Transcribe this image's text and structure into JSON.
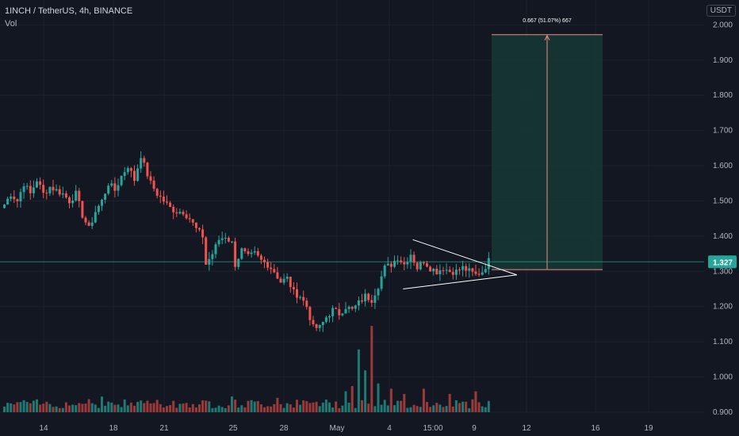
{
  "header": {
    "symbol_line": "1INCH / TetherUS, 4h, BINANCE",
    "volume_label": "Vol",
    "currency": "USDT"
  },
  "colors": {
    "background": "#131722",
    "up": "#26a69a",
    "down": "#ef5350",
    "vol_up": "#1e7a72",
    "vol_down": "#9b3a3a",
    "grid": "#1e222d",
    "axis_text": "#b2b5be",
    "current_price": "#26a69a",
    "target_zone": "#163832",
    "measure_line": "#f28b82",
    "triangle": "#ffffff"
  },
  "chart_data": {
    "type": "candlestick",
    "symbol": "1INCH/USDT",
    "timeframe": "4h",
    "exchange": "BINANCE",
    "x_ticks": [
      "14",
      "18",
      "21",
      "25",
      "28",
      "May",
      "4",
      "15:00",
      "9",
      "12",
      "16",
      "19"
    ],
    "y_ticks": [
      "2.000",
      "1.900",
      "1.800",
      "1.700",
      "1.600",
      "1.500",
      "1.400",
      "1.300",
      "1.200",
      "1.100",
      "1.000",
      "0.900"
    ],
    "ylim": [
      0.9,
      2.03
    ],
    "current_price": 1.327,
    "current_price_label": "1.327",
    "price_path": [
      [
        0,
        1.49
      ],
      [
        2,
        1.52
      ],
      [
        4,
        1.5
      ],
      [
        6,
        1.55
      ],
      [
        8,
        1.52
      ],
      [
        10,
        1.56
      ],
      [
        12,
        1.52
      ],
      [
        14,
        1.54
      ],
      [
        16,
        1.53
      ],
      [
        18,
        1.52
      ],
      [
        20,
        1.5
      ],
      [
        22,
        1.52
      ],
      [
        24,
        1.46
      ],
      [
        26,
        1.42
      ],
      [
        28,
        1.47
      ],
      [
        30,
        1.5
      ],
      [
        32,
        1.55
      ],
      [
        34,
        1.53
      ],
      [
        36,
        1.57
      ],
      [
        38,
        1.6
      ],
      [
        40,
        1.56
      ],
      [
        42,
        1.63
      ],
      [
        43,
        1.6
      ],
      [
        45,
        1.55
      ],
      [
        47,
        1.52
      ],
      [
        49,
        1.5
      ],
      [
        51,
        1.48
      ],
      [
        53,
        1.47
      ],
      [
        55,
        1.47
      ],
      [
        57,
        1.45
      ],
      [
        59,
        1.42
      ],
      [
        61,
        1.4
      ],
      [
        62,
        1.32
      ],
      [
        64,
        1.35
      ],
      [
        66,
        1.39
      ],
      [
        68,
        1.4
      ],
      [
        70,
        1.38
      ],
      [
        71,
        1.32
      ],
      [
        73,
        1.36
      ],
      [
        75,
        1.34
      ],
      [
        77,
        1.35
      ],
      [
        79,
        1.33
      ],
      [
        81,
        1.32
      ],
      [
        83,
        1.3
      ],
      [
        85,
        1.27
      ],
      [
        87,
        1.28
      ],
      [
        89,
        1.24
      ],
      [
        91,
        1.23
      ],
      [
        93,
        1.2
      ],
      [
        95,
        1.14
      ],
      [
        97,
        1.14
      ],
      [
        99,
        1.17
      ],
      [
        101,
        1.19
      ],
      [
        103,
        1.18
      ],
      [
        105,
        1.2
      ],
      [
        107,
        1.19
      ],
      [
        109,
        1.21
      ],
      [
        111,
        1.23
      ],
      [
        113,
        1.22
      ],
      [
        115,
        1.26
      ],
      [
        117,
        1.31
      ],
      [
        119,
        1.32
      ],
      [
        121,
        1.34
      ],
      [
        123,
        1.32
      ],
      [
        125,
        1.35
      ],
      [
        127,
        1.31
      ],
      [
        129,
        1.33
      ],
      [
        131,
        1.31
      ],
      [
        133,
        1.3
      ],
      [
        135,
        1.31
      ],
      [
        137,
        1.3
      ],
      [
        139,
        1.3
      ],
      [
        141,
        1.31
      ],
      [
        143,
        1.3
      ],
      [
        145,
        1.29
      ],
      [
        147,
        1.3
      ],
      [
        149,
        1.33
      ]
    ],
    "volume_bursts": [
      [
        26,
        0.5
      ],
      [
        30,
        0.6
      ],
      [
        42,
        0.45
      ],
      [
        46,
        0.35
      ],
      [
        70,
        0.6
      ],
      [
        84,
        0.55
      ],
      [
        96,
        0.4
      ],
      [
        105,
        0.8
      ],
      [
        107,
        1.0
      ],
      [
        109,
        2.4
      ],
      [
        111,
        1.6
      ],
      [
        113,
        3.3
      ],
      [
        115,
        1.1
      ],
      [
        119,
        0.9
      ],
      [
        123,
        0.7
      ],
      [
        129,
        0.9
      ],
      [
        137,
        0.7
      ],
      [
        145,
        0.8
      ]
    ],
    "triangle": {
      "apex": [
        158,
        1.29
      ],
      "upper": [
        126,
        1.39
      ],
      "lower": [
        123,
        1.25
      ]
    },
    "measure": {
      "label": "0.667 (51.07%) 667",
      "from_price": 1.305,
      "to_price": 1.972
    }
  }
}
